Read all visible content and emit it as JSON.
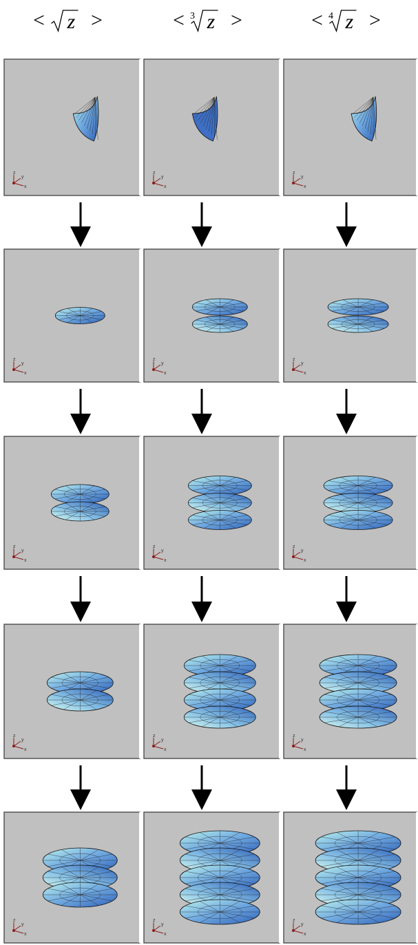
{
  "columns": [
    {
      "open": "<",
      "radicand": "z",
      "close": ">"
    },
    {
      "open": "<",
      "index": "3",
      "radicand": "z",
      "close": ">"
    },
    {
      "open": "<",
      "index": "4",
      "radicand": "z",
      "close": ">"
    }
  ],
  "axis_icon": {
    "z": "z",
    "y": "y",
    "x": "x"
  }
}
